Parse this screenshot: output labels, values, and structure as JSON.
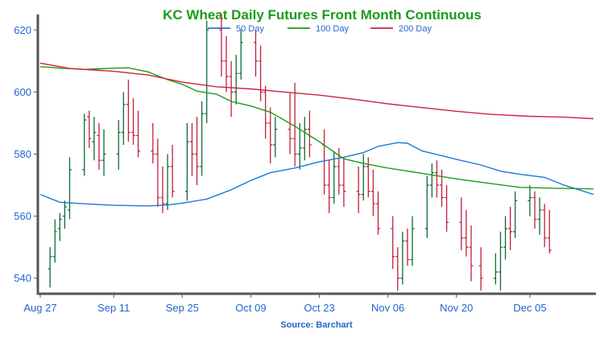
{
  "chart_data": {
    "type": "ohlc",
    "title": "KC Wheat Daily Futures Front Month Continuous",
    "source": "Source: Barchart",
    "colors": {
      "title": "#1a9c1a",
      "axis_text": "#2266cc",
      "up": "#0b6b3a",
      "down": "#c41e3a",
      "ma50": "#1f77d4",
      "ma100": "#1a9c1a",
      "ma200": "#d0223e",
      "axis": "#555555"
    },
    "ylim": [
      535,
      625
    ],
    "yticks": [
      540,
      560,
      580,
      600,
      620
    ],
    "date_range": [
      "2022-08-27",
      "2022-12-18"
    ],
    "xticks": [
      {
        "date": "2022-08-27",
        "label": "Aug 27"
      },
      {
        "date": "2022-09-11",
        "label": "Sep 11"
      },
      {
        "date": "2022-09-25",
        "label": "Sep 25"
      },
      {
        "date": "2022-10-09",
        "label": "Oct 09"
      },
      {
        "date": "2022-10-23",
        "label": "Oct 23"
      },
      {
        "date": "2022-11-06",
        "label": "Nov 06"
      },
      {
        "date": "2022-11-20",
        "label": "Nov 20"
      },
      {
        "date": "2022-12-05",
        "label": "Dec 05"
      }
    ],
    "legend": [
      {
        "name": "50 Day",
        "key": "ma50"
      },
      {
        "name": "100 Day",
        "key": "ma100"
      },
      {
        "name": "200 Day",
        "key": "ma200"
      }
    ],
    "series": [
      {
        "name": "50 Day",
        "key": "ma50",
        "points": [
          [
            "2022-08-27",
            567
          ],
          [
            "2022-08-31",
            564.5
          ],
          [
            "2022-09-05",
            564
          ],
          [
            "2022-09-11",
            563.5
          ],
          [
            "2022-09-18",
            563.3
          ],
          [
            "2022-09-22",
            563.6
          ],
          [
            "2022-09-25",
            564.2
          ],
          [
            "2022-09-30",
            565.5
          ],
          [
            "2022-10-05",
            568.5
          ],
          [
            "2022-10-09",
            571.5
          ],
          [
            "2022-10-13",
            574
          ],
          [
            "2022-10-18",
            575.5
          ],
          [
            "2022-10-23",
            577.5
          ],
          [
            "2022-10-28",
            579
          ],
          [
            "2022-11-01",
            580.5
          ],
          [
            "2022-11-04",
            582.5
          ],
          [
            "2022-11-08",
            583.7
          ],
          [
            "2022-11-10",
            583.5
          ],
          [
            "2022-11-13",
            581
          ],
          [
            "2022-11-17",
            579.5
          ],
          [
            "2022-11-20",
            578.3
          ],
          [
            "2022-11-25",
            576.5
          ],
          [
            "2022-11-29",
            574.5
          ],
          [
            "2022-12-03",
            573.5
          ],
          [
            "2022-12-08",
            572.5
          ],
          [
            "2022-12-12",
            570
          ],
          [
            "2022-12-18",
            567
          ]
        ]
      },
      {
        "name": "100 Day",
        "key": "ma100",
        "points": [
          [
            "2022-08-27",
            608.2
          ],
          [
            "2022-08-31",
            607.7
          ],
          [
            "2022-09-05",
            607.3
          ],
          [
            "2022-09-11",
            607.7
          ],
          [
            "2022-09-14",
            607.8
          ],
          [
            "2022-09-18",
            606.5
          ],
          [
            "2022-09-22",
            604
          ],
          [
            "2022-09-25",
            602.5
          ],
          [
            "2022-09-28",
            600.3
          ],
          [
            "2022-10-02",
            599.3
          ],
          [
            "2022-10-05",
            597
          ],
          [
            "2022-10-09",
            595.5
          ],
          [
            "2022-10-13",
            593.5
          ],
          [
            "2022-10-18",
            589
          ],
          [
            "2022-10-23",
            584
          ],
          [
            "2022-10-28",
            578.5
          ],
          [
            "2022-11-01",
            577
          ],
          [
            "2022-11-06",
            575.5
          ],
          [
            "2022-11-13",
            573.8
          ],
          [
            "2022-11-20",
            572
          ],
          [
            "2022-11-27",
            570.5
          ],
          [
            "2022-12-03",
            569.3
          ],
          [
            "2022-12-10",
            569
          ],
          [
            "2022-12-18",
            568.8
          ]
        ]
      },
      {
        "name": "200 Day",
        "key": "ma200",
        "points": [
          [
            "2022-08-27",
            609.3
          ],
          [
            "2022-09-02",
            607.6
          ],
          [
            "2022-09-11",
            606.7
          ],
          [
            "2022-09-18",
            605.5
          ],
          [
            "2022-09-25",
            603.2
          ],
          [
            "2022-10-02",
            601.7
          ],
          [
            "2022-10-09",
            601
          ],
          [
            "2022-10-16",
            600
          ],
          [
            "2022-10-23",
            599
          ],
          [
            "2022-10-30",
            597.7
          ],
          [
            "2022-11-06",
            596.2
          ],
          [
            "2022-11-13",
            595
          ],
          [
            "2022-11-20",
            593.8
          ],
          [
            "2022-11-27",
            592.8
          ],
          [
            "2022-12-05",
            592.2
          ],
          [
            "2022-12-12",
            591.9
          ],
          [
            "2022-12-18",
            591.4
          ]
        ]
      }
    ],
    "ohlc": [
      [
        "2022-08-29",
        543,
        550,
        537,
        547
      ],
      [
        "2022-08-30",
        547,
        559,
        545,
        555
      ],
      [
        "2022-08-31",
        556,
        561,
        552,
        559
      ],
      [
        "2022-09-01",
        560,
        565,
        556,
        563
      ],
      [
        "2022-09-02",
        562,
        579,
        559,
        575
      ],
      [
        "2022-09-05",
        575,
        593,
        573,
        591
      ],
      [
        "2022-09-06",
        592,
        594,
        582,
        585
      ],
      [
        "2022-09-07",
        584,
        592,
        578,
        587
      ],
      [
        "2022-09-08",
        586,
        590,
        575,
        578
      ],
      [
        "2022-09-09",
        578,
        588,
        573,
        580
      ],
      [
        "2022-09-12",
        580,
        591,
        575,
        587
      ],
      [
        "2022-09-13",
        587,
        600,
        583,
        596
      ],
      [
        "2022-09-14",
        596,
        604,
        584,
        587
      ],
      [
        "2022-09-15",
        587,
        598,
        583,
        586
      ],
      [
        "2022-09-16",
        586,
        594,
        579,
        581
      ],
      [
        "2022-09-19",
        581,
        590,
        577,
        580
      ],
      [
        "2022-09-20",
        580,
        585,
        563,
        566
      ],
      [
        "2022-09-21",
        566,
        576,
        561,
        564
      ],
      [
        "2022-09-22",
        564,
        580,
        562,
        576
      ],
      [
        "2022-09-23",
        576,
        583,
        566,
        568
      ],
      [
        "2022-09-26",
        568,
        590,
        565,
        584
      ],
      [
        "2022-09-27",
        584,
        590,
        573,
        580
      ],
      [
        "2022-09-28",
        580,
        592,
        570,
        576
      ],
      [
        "2022-09-29",
        576,
        597,
        573,
        593
      ],
      [
        "2022-09-30",
        593,
        623,
        590,
        620
      ],
      [
        "2022-10-03",
        620,
        625,
        605,
        610
      ],
      [
        "2022-10-04",
        610,
        618,
        600,
        605
      ],
      [
        "2022-10-05",
        605,
        610,
        592,
        600
      ],
      [
        "2022-10-06",
        600,
        612,
        596,
        606
      ],
      [
        "2022-10-07",
        606,
        620,
        604,
        616
      ],
      [
        "2022-10-10",
        616,
        620,
        605,
        610
      ],
      [
        "2022-10-11",
        610,
        615,
        597,
        600
      ],
      [
        "2022-10-12",
        600,
        602,
        585,
        590
      ],
      [
        "2022-10-13",
        590,
        595,
        577,
        583
      ],
      [
        "2022-10-14",
        583,
        592,
        579,
        588
      ],
      [
        "2022-10-17",
        588,
        600,
        580,
        585
      ],
      [
        "2022-10-18",
        585,
        603,
        576,
        580
      ],
      [
        "2022-10-19",
        580,
        590,
        575,
        582
      ],
      [
        "2022-10-20",
        582,
        592,
        578,
        588
      ],
      [
        "2022-10-21",
        588,
        594,
        579,
        583
      ],
      [
        "2022-10-24",
        583,
        588,
        567,
        570
      ],
      [
        "2022-10-25",
        570,
        578,
        561,
        566
      ],
      [
        "2022-10-26",
        566,
        581,
        564,
        576
      ],
      [
        "2022-10-27",
        576,
        582,
        567,
        570
      ],
      [
        "2022-10-28",
        570,
        579,
        563,
        568
      ],
      [
        "2022-10-31",
        568,
        576,
        561,
        567
      ],
      [
        "2022-11-01",
        567,
        580,
        565,
        576
      ],
      [
        "2022-11-02",
        576,
        579,
        566,
        568
      ],
      [
        "2022-11-03",
        568,
        575,
        560,
        564
      ],
      [
        "2022-11-04",
        564,
        568,
        554,
        556
      ],
      [
        "2022-11-07",
        556,
        560,
        543,
        547
      ],
      [
        "2022-11-08",
        547,
        550,
        536,
        540
      ],
      [
        "2022-11-09",
        540,
        555,
        538,
        552
      ],
      [
        "2022-11-10",
        552,
        556,
        544,
        546
      ],
      [
        "2022-11-11",
        546,
        560,
        544,
        556
      ],
      [
        "2022-11-14",
        556,
        573,
        553,
        570
      ],
      [
        "2022-11-15",
        570,
        577,
        566,
        574
      ],
      [
        "2022-11-16",
        574,
        578,
        566,
        570
      ],
      [
        "2022-11-17",
        570,
        575,
        563,
        566
      ],
      [
        "2022-11-18",
        566,
        570,
        555,
        558
      ],
      [
        "2022-11-21",
        558,
        566,
        549,
        553
      ],
      [
        "2022-11-22",
        553,
        562,
        547,
        550
      ],
      [
        "2022-11-23",
        550,
        557,
        539,
        544
      ],
      [
        "2022-11-25",
        544,
        550,
        536,
        540
      ],
      [
        "2022-11-28",
        540,
        548,
        538,
        542
      ],
      [
        "2022-11-29",
        542,
        555,
        536,
        550
      ],
      [
        "2022-11-30",
        550,
        560,
        546,
        556
      ],
      [
        "2022-12-01",
        556,
        563,
        549,
        555
      ],
      [
        "2022-12-02",
        555,
        568,
        553,
        565
      ],
      [
        "2022-12-05",
        565,
        570,
        560,
        566
      ],
      [
        "2022-12-06",
        566,
        568,
        556,
        559
      ],
      [
        "2022-12-07",
        559,
        566,
        554,
        562
      ],
      [
        "2022-12-08",
        562,
        564,
        550,
        553
      ],
      [
        "2022-12-09",
        553,
        562,
        548,
        549
      ]
    ]
  }
}
